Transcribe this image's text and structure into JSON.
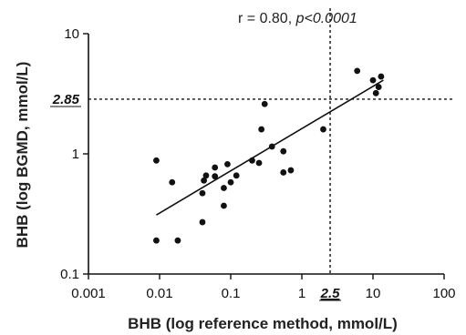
{
  "chart_data": {
    "type": "scatter",
    "title": "",
    "xlabel": "BHB (log reference method, mmol/L)",
    "ylabel": "BHB (log BGMD, mmol/L)",
    "x_scale": "log",
    "y_scale": "log",
    "xlim": [
      0.001,
      100
    ],
    "ylim": [
      0.1,
      10
    ],
    "x_ticks": [
      0.001,
      0.01,
      0.1,
      1,
      10,
      100
    ],
    "x_tick_labels": [
      "0.001",
      "0.01",
      "0.1",
      "1",
      "10",
      "100"
    ],
    "y_ticks": [
      0.1,
      1,
      10
    ],
    "y_tick_labels": [
      "0.1",
      "1",
      "10"
    ],
    "grid": false,
    "annotation": {
      "prefix": "r = 0.80, ",
      "p_text": "p<0.0001"
    },
    "reference_lines": {
      "x": {
        "value": 2.5,
        "label": "2.5"
      },
      "y": {
        "value": 2.85,
        "label": "2.85"
      }
    },
    "regression_line": {
      "start": [
        0.009,
        0.31
      ],
      "end": [
        14,
        4.1
      ]
    },
    "points": [
      {
        "x": 0.009,
        "y": 0.88
      },
      {
        "x": 0.009,
        "y": 0.19
      },
      {
        "x": 0.015,
        "y": 0.58
      },
      {
        "x": 0.018,
        "y": 0.19
      },
      {
        "x": 0.04,
        "y": 0.27
      },
      {
        "x": 0.04,
        "y": 0.47
      },
      {
        "x": 0.042,
        "y": 0.6
      },
      {
        "x": 0.045,
        "y": 0.66
      },
      {
        "x": 0.06,
        "y": 0.65
      },
      {
        "x": 0.06,
        "y": 0.77
      },
      {
        "x": 0.08,
        "y": 0.37
      },
      {
        "x": 0.08,
        "y": 0.52
      },
      {
        "x": 0.09,
        "y": 0.82
      },
      {
        "x": 0.1,
        "y": 0.58
      },
      {
        "x": 0.12,
        "y": 0.66
      },
      {
        "x": 0.2,
        "y": 0.88
      },
      {
        "x": 0.25,
        "y": 0.84
      },
      {
        "x": 0.27,
        "y": 1.6
      },
      {
        "x": 0.3,
        "y": 2.6
      },
      {
        "x": 0.38,
        "y": 1.15
      },
      {
        "x": 0.55,
        "y": 0.7
      },
      {
        "x": 0.55,
        "y": 1.05
      },
      {
        "x": 0.7,
        "y": 0.73
      },
      {
        "x": 2.0,
        "y": 1.6
      },
      {
        "x": 6.0,
        "y": 4.9
      },
      {
        "x": 10.0,
        "y": 4.1
      },
      {
        "x": 11.0,
        "y": 3.2
      },
      {
        "x": 12.0,
        "y": 3.6
      },
      {
        "x": 13.0,
        "y": 4.4
      }
    ]
  }
}
